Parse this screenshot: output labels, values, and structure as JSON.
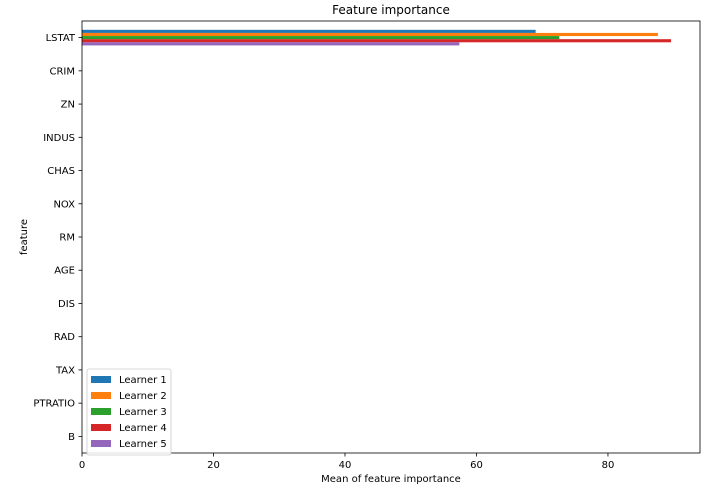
{
  "chart_data": {
    "type": "bar",
    "orientation": "horizontal",
    "title": "Feature importance",
    "xlabel": "Mean of feature importance",
    "ylabel": "feature",
    "categories": [
      "LSTAT",
      "CRIM",
      "ZN",
      "INDUS",
      "CHAS",
      "NOX",
      "RM",
      "AGE",
      "DIS",
      "RAD",
      "TAX",
      "PTRATIO",
      "B"
    ],
    "xlim": [
      0,
      94
    ],
    "xticks": [
      0,
      20,
      40,
      60,
      80
    ],
    "series": [
      {
        "name": "Learner 1",
        "color": "#1f77b4",
        "values": [
          69,
          0,
          0,
          0,
          0,
          0,
          0,
          0,
          0,
          0,
          0,
          0,
          0
        ]
      },
      {
        "name": "Learner 2",
        "color": "#ff7f0e",
        "values": [
          87.6,
          0,
          0,
          0,
          0,
          0,
          0,
          0,
          0,
          0,
          0,
          0,
          0
        ]
      },
      {
        "name": "Learner 3",
        "color": "#2ca02c",
        "values": [
          72.6,
          0,
          0,
          0,
          0,
          0,
          0,
          0,
          0,
          0,
          0,
          0,
          0
        ]
      },
      {
        "name": "Learner 4",
        "color": "#d62728",
        "values": [
          89.6,
          0,
          0,
          0,
          0,
          0,
          0,
          0,
          0,
          0,
          0,
          0,
          0
        ]
      },
      {
        "name": "Learner 5",
        "color": "#9467bd",
        "values": [
          57.4,
          0,
          0,
          0,
          0,
          0,
          0,
          0,
          0,
          0,
          0,
          0,
          0
        ]
      }
    ],
    "grid": false,
    "legend_position": "lower-left"
  }
}
